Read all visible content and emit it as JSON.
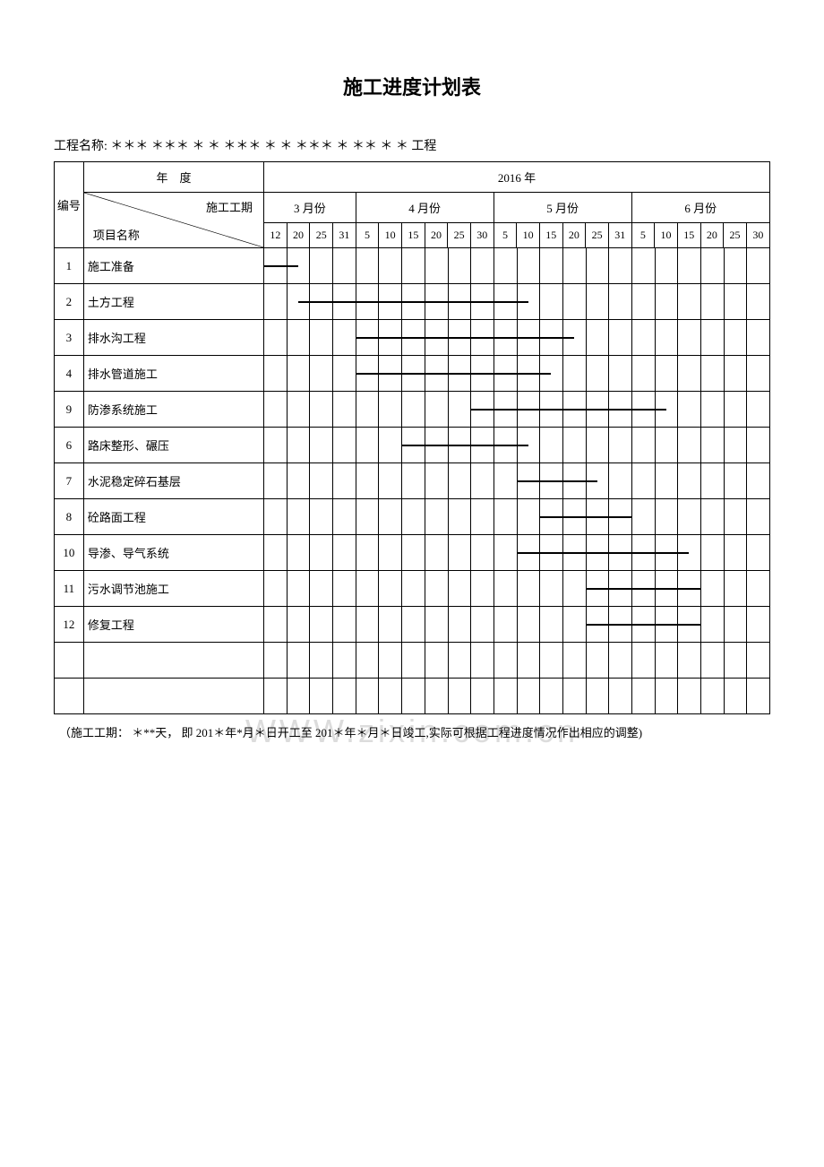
{
  "title": "施工进度计划表",
  "projectNamePrefix": "工程名称:",
  "projectNameValue": "＊＊＊ ＊＊＊ ＊ ＊ ＊＊＊ ＊ ＊ ＊＊＊ ＊ ＊＊ ＊ ＊ 工程",
  "yearHeaderLabel": "年　度",
  "numHeader": "编号",
  "diagTopLabel": "施工工期",
  "diagBottomLabel": "项目名称",
  "yearLabel": "2016 年",
  "months": [
    {
      "label": "3 月份",
      "days": [
        "12",
        "20",
        "25",
        "31"
      ]
    },
    {
      "label": "4 月份",
      "days": [
        "5",
        "10",
        "15",
        "20",
        "25",
        "30"
      ]
    },
    {
      "label": "5 月份",
      "days": [
        "5",
        "10",
        "15",
        "20",
        "25",
        "31"
      ]
    },
    {
      "label": "6 月份",
      "days": [
        "5",
        "10",
        "15",
        "20",
        "25",
        "30"
      ]
    }
  ],
  "totalDayCols": 22,
  "rows": [
    {
      "num": "1",
      "name": "施工准备",
      "barStart": 0,
      "barEnd": 1.5
    },
    {
      "num": "2",
      "name": "土方工程",
      "barStart": 1.5,
      "barEnd": 11.5
    },
    {
      "num": "3",
      "name": "排水沟工程",
      "barStart": 4,
      "barEnd": 13.5
    },
    {
      "num": "4",
      "name": "排水管道施工",
      "barStart": 4,
      "barEnd": 12.5
    },
    {
      "num": "9",
      "name": "防渗系统施工",
      "barStart": 9,
      "barEnd": 17.5
    },
    {
      "num": "6",
      "name": "路床整形、碾压",
      "barStart": 6,
      "barEnd": 11.5
    },
    {
      "num": "7",
      "name": "水泥稳定碎石基层",
      "barStart": 11,
      "barEnd": 14.5
    },
    {
      "num": "8",
      "name": "砼路面工程",
      "barStart": 12,
      "barEnd": 16
    },
    {
      "num": "10",
      "name": "导渗、导气系统",
      "barStart": 11,
      "barEnd": 18.5
    },
    {
      "num": "11",
      "name": "污水调节池施工",
      "barStart": 14,
      "barEnd": 19
    },
    {
      "num": "12",
      "name": "修复工程",
      "barStart": 14,
      "barEnd": 19
    },
    {
      "num": "",
      "name": ""
    },
    {
      "num": "",
      "name": ""
    }
  ],
  "bottomNote": "（施工工期： ＊**天， 即 201＊年*月＊日开工至 201＊年＊月＊日竣工,实际可根据工程进度情况作出相应的调整)",
  "watermark": "WWW.zixin.com.cn",
  "colors": {
    "border": "#000000",
    "background": "#ffffff",
    "bar": "#000000",
    "watermark": "#dcdcdc"
  }
}
